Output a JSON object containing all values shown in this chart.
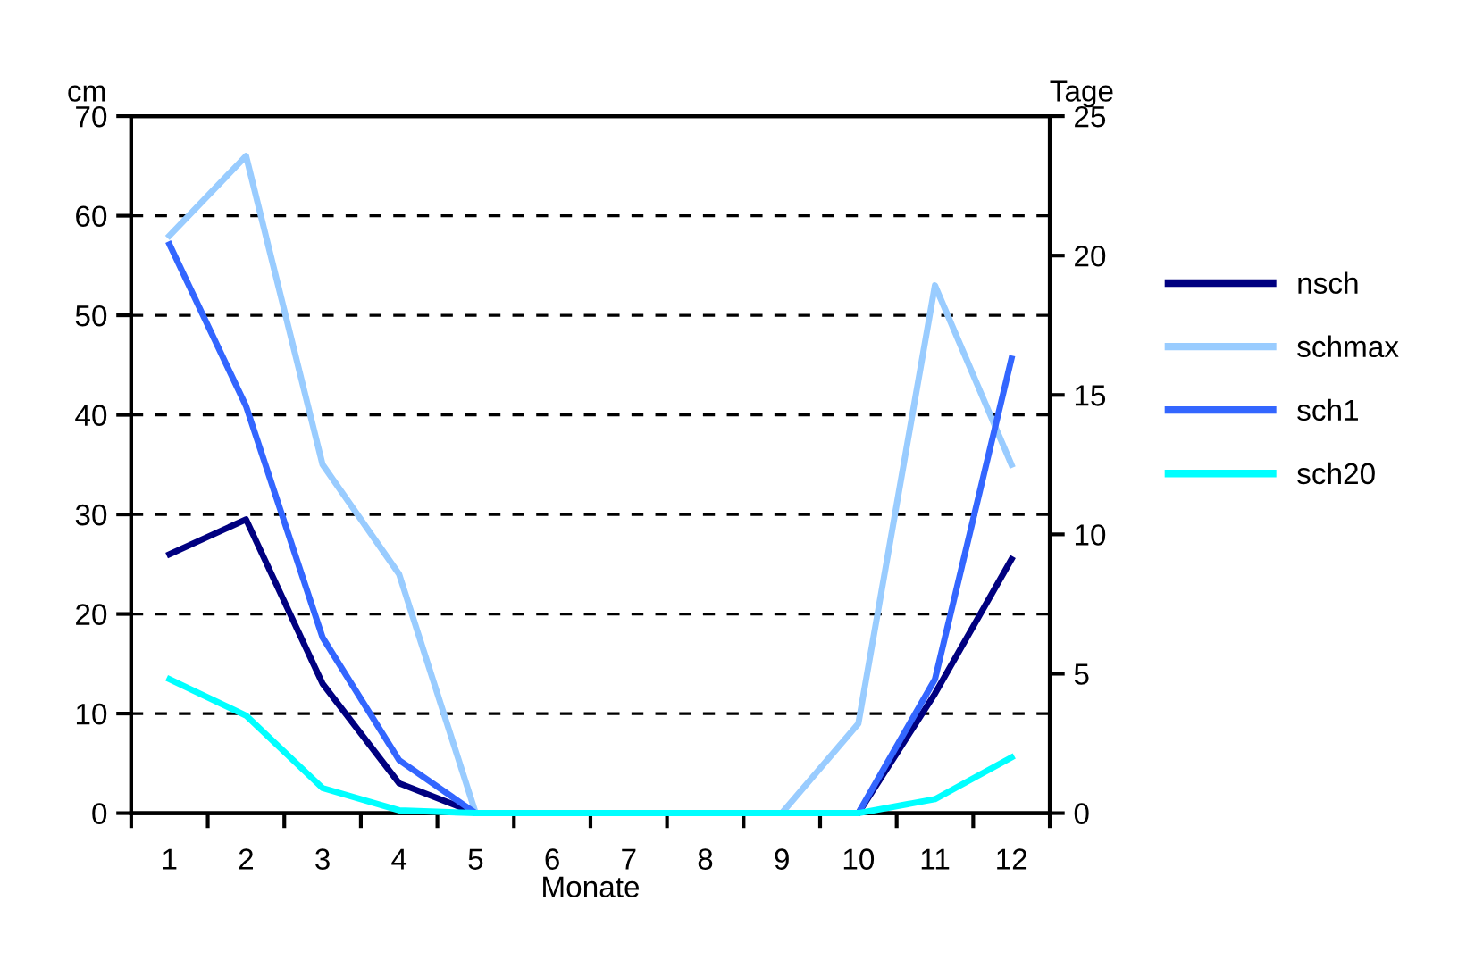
{
  "chart_data": {
    "type": "line",
    "xlabel": "Monate",
    "ylabel": "cm",
    "y2label": "Tage",
    "categories": [
      "1",
      "2",
      "3",
      "4",
      "5",
      "6",
      "7",
      "8",
      "9",
      "10",
      "11",
      "12"
    ],
    "series": [
      {
        "name": "nsch",
        "color": "#000080",
        "values": [
          26,
          29.5,
          13,
          3,
          0,
          0,
          0,
          0,
          0,
          0,
          12,
          25.5
        ]
      },
      {
        "name": "schmax",
        "color": "#99ccff",
        "values": [
          58,
          66,
          35,
          24,
          0,
          0,
          0,
          0,
          0,
          9,
          53,
          35
        ]
      },
      {
        "name": "sch1",
        "color": "#3366ff",
        "axis": "y2",
        "values": [
          20.4,
          14.6,
          6.3,
          1.9,
          0,
          0,
          0,
          0,
          0,
          0,
          4.8,
          16.3
        ]
      },
      {
        "name": "sch20",
        "color": "#00ffff",
        "axis": "y2",
        "values": [
          4.8,
          3.5,
          0.9,
          0.1,
          0,
          0,
          0,
          0,
          0,
          0,
          0.5,
          2
        ]
      }
    ],
    "ylim": [
      0,
      70
    ],
    "yticks": [
      0,
      10,
      20,
      30,
      40,
      50,
      60,
      70
    ],
    "y2lim": [
      0,
      25
    ],
    "y2ticks": [
      0,
      5,
      10,
      15,
      20,
      25
    ],
    "grid": "y",
    "legend": "right",
    "line_style": "solid",
    "marker": "none"
  }
}
